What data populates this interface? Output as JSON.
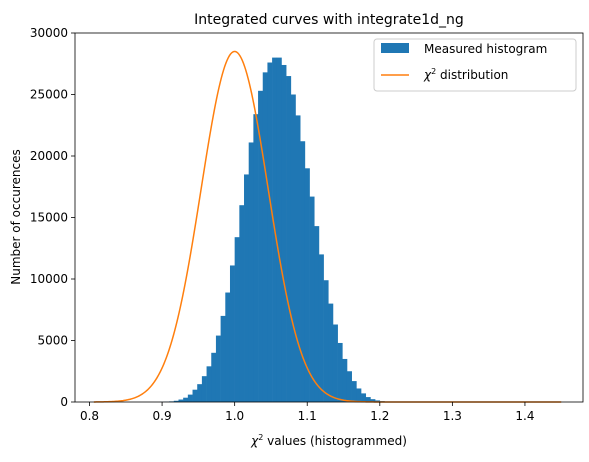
{
  "chart_data": {
    "type": "bar",
    "title": "Integrated curves with integrate1d_ng",
    "xlabel_symbol": "χ",
    "xlabel_sup": "2",
    "xlabel_rest": " values (histogrammed)",
    "ylabel": "Number of occurences",
    "xlim": [
      0.78,
      1.48
    ],
    "ylim": [
      0,
      30000
    ],
    "xticks": [
      0.8,
      0.9,
      1.0,
      1.1,
      1.2,
      1.3,
      1.4
    ],
    "xtick_labels": [
      "0.8",
      "0.9",
      "1.0",
      "1.1",
      "1.2",
      "1.3",
      "1.4"
    ],
    "yticks": [
      0,
      5000,
      10000,
      15000,
      20000,
      25000,
      30000
    ],
    "ytick_labels": [
      "0",
      "5000",
      "10000",
      "15000",
      "20000",
      "25000",
      "30000"
    ],
    "grid": false,
    "legend_position": "top-right",
    "legend": {
      "histogram_label": "Measured histogram",
      "curve_symbol": "χ",
      "curve_sup": "2",
      "curve_rest": " distribution"
    },
    "colors": {
      "histogram": "#1f77b4",
      "curve": "#ff7f0e"
    },
    "histogram": {
      "name": "Measured histogram",
      "bin_width": 0.00645,
      "bin_start": 0.8065,
      "counts": [
        0,
        0,
        0,
        0,
        0,
        0,
        0,
        0,
        0,
        0,
        0,
        0,
        0,
        0,
        10,
        20,
        50,
        100,
        200,
        350,
        600,
        1000,
        1450,
        2100,
        2900,
        4000,
        5400,
        7000,
        8900,
        11100,
        13400,
        16000,
        18500,
        21100,
        23400,
        25300,
        26800,
        27600,
        28000,
        28000,
        27400,
        26500,
        25000,
        23300,
        21200,
        19000,
        16700,
        14300,
        12000,
        9900,
        8000,
        6300,
        4800,
        3500,
        2500,
        1700,
        1100,
        700,
        400,
        230,
        130,
        70,
        30,
        10,
        0,
        0,
        0,
        0,
        0,
        0,
        0,
        0,
        0,
        0,
        0,
        0,
        0,
        0,
        0,
        0,
        0,
        0,
        0,
        0,
        0,
        0,
        0,
        0,
        0,
        0,
        0,
        0,
        0,
        0,
        0,
        0,
        0,
        0,
        0,
        0
      ]
    },
    "curve": {
      "name": "χ² distribution",
      "x_start": 0.806,
      "x_end": 1.45,
      "center": 1.0,
      "peak": 28500,
      "sigma": 0.0463
    }
  }
}
